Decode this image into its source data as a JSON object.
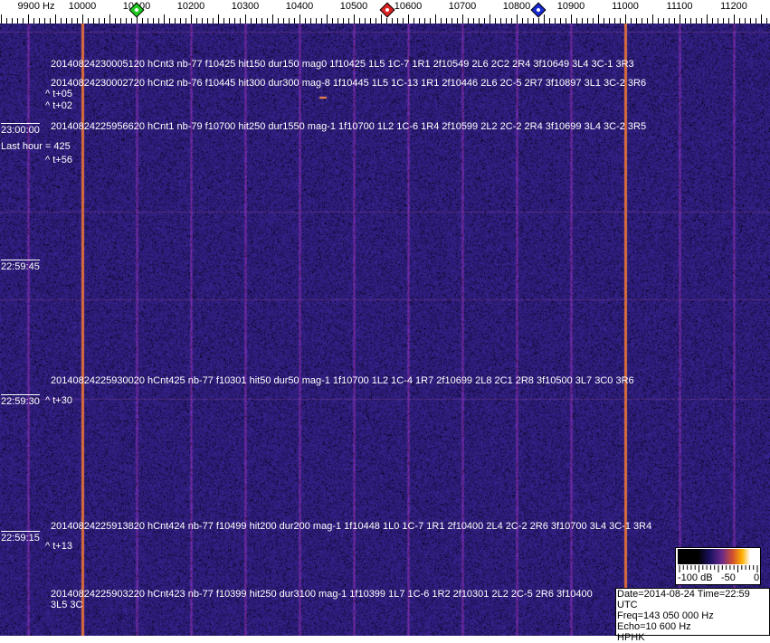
{
  "axis": {
    "unit_label": "9900 Hz",
    "ticks": [
      "10000",
      "10100",
      "10200",
      "10300",
      "10400",
      "10500",
      "10600",
      "10700",
      "10800",
      "10900",
      "11000",
      "11100",
      "11200"
    ],
    "tick_values": [
      9900,
      10000,
      10100,
      10200,
      10300,
      10400,
      10500,
      10600,
      10700,
      10800,
      10900,
      11000,
      11100,
      11200
    ],
    "markers": [
      {
        "name": "green-marker",
        "freq": 10100,
        "color": "#22cc22"
      },
      {
        "name": "red-marker",
        "freq": 10562,
        "color": "#dd2222"
      },
      {
        "name": "blue-marker",
        "freq": 10840,
        "color": "#1a2ad0"
      }
    ]
  },
  "detections": [
    {
      "text": "20140824230005120 hCnt3 nb-77 f10425 hit150 dur150 mag0 1f10425 1L5 1C-7 1R1 2f10549 2L6 2C2 2R4 3f10649 3L4 3C-1 3R3"
    },
    {
      "text": "20140824230002720 hCnt2 nb-76 f10445 hit300 dur300 mag-8 1f10445 1L5 1C-13 1R1 2f10446 2L6 2C-5 2R7 3f10897 3L1 3C-2 3R6",
      "offset": "^ t+05"
    },
    {
      "offset": "^ t+02"
    },
    {
      "text": "20140824225956620 hCnt1 nb-79 f10700 hit250 dur1550 mag-1 1f10700 1L2 1C-6 1R4 2f10599 2L2 2C-2 2R4 3f10699 3L4 3C-2 3R5",
      "offset": "^ t+56"
    },
    {
      "text": "20140824225930020 hCnt425 nb-77 f10301 hit50 dur50 mag-1 1f10700 1L2 1C-4 1R7 2f10699 2L8 2C1 2R8 3f10500 3L7 3C0 3R6",
      "offset": "^ t+30"
    },
    {
      "text": "20140824225913820 hCnt424 nb-77 f10499 hit200 dur200 mag-1 1f10448 1L0 1C-7 1R1 2f10400 2L4 2C-2 2R6 3f10700 3L4 3C-1 3R4",
      "offset": "^ t+13"
    },
    {
      "text": "20140824225903220 hCnt423 nb-77 f10399 hit250 dur3100 mag-1 1f10399 1L7 1C-6 1R2 2f10301 2L2 2C-5 2R6 3f10400 3L5 3C"
    }
  ],
  "time_labels": [
    "23:00:00",
    "22:59:45",
    "22:59:30",
    "22:59:15"
  ],
  "last_hour": "Last hour = 425",
  "scale": {
    "labels": [
      "-100 dB",
      "-50",
      "0"
    ]
  },
  "info": {
    "date": "Date=2014-08-24 Time=22:59 UTC",
    "freq": "Freq=143 050 000 Hz",
    "echo": "Echo=10 600 Hz",
    "station": "HPHK"
  },
  "colors": {
    "background": "#2a1c78",
    "carrier": "#e07030"
  }
}
